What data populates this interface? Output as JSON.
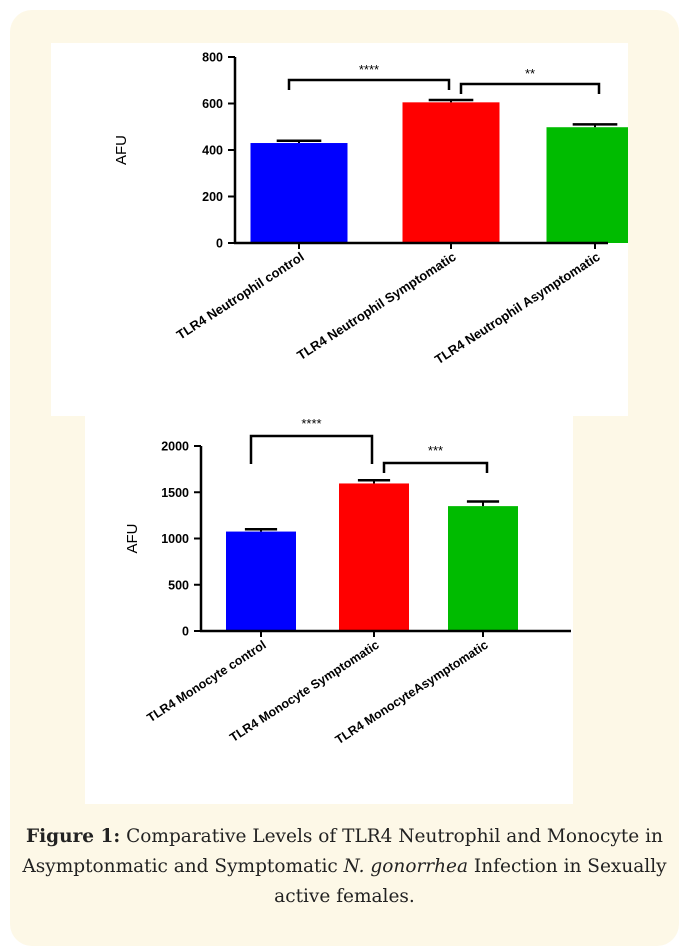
{
  "chart_data": [
    {
      "type": "bar",
      "categories": [
        "TLR4 Neutrophil control",
        "TLR4 Neutrophil Symptomatic",
        "TLR4 Neutrophil Asymptomatic"
      ],
      "values": [
        430,
        605,
        498
      ],
      "errors": [
        10,
        10,
        12
      ],
      "colors": [
        "#0000ff",
        "#ff0000",
        "#00bb00"
      ],
      "ylabel": "AFU",
      "ylim": [
        0,
        800
      ],
      "yticks": [
        0,
        200,
        400,
        600,
        800
      ],
      "ytick_labels": [
        "0",
        "200",
        "400",
        "600",
        "800"
      ],
      "significance": [
        {
          "from": 0,
          "to": 1,
          "label": "****"
        },
        {
          "from": 1,
          "to": 2,
          "label": "**"
        }
      ]
    },
    {
      "type": "bar",
      "categories": [
        "TLR4 Monocyte control",
        "TLR4 Monocyte Symptomatic",
        "TLR4 MonocyteAsymptomatic"
      ],
      "values": [
        1075,
        1595,
        1350
      ],
      "errors": [
        25,
        35,
        50
      ],
      "colors": [
        "#0000ff",
        "#ff0000",
        "#00bb00"
      ],
      "ylabel": "AFU",
      "ylim": [
        0,
        2000
      ],
      "yticks": [
        0,
        500,
        1000,
        1500,
        2000
      ],
      "ytick_labels": [
        "0",
        "500",
        "1000",
        "1500",
        "2000"
      ],
      "significance": [
        {
          "from": 0,
          "to": 1,
          "label": "****"
        },
        {
          "from": 1,
          "to": 2,
          "label": "***"
        }
      ]
    }
  ],
  "caption": {
    "label": "Figure 1:",
    "text_1": " Comparative Levels of TLR4 Neutrophil and Monocyte in Asymptonmatic and Symptomatic ",
    "species": "N. gonorrhea",
    "text_2": " Infection in Sexually active females."
  }
}
